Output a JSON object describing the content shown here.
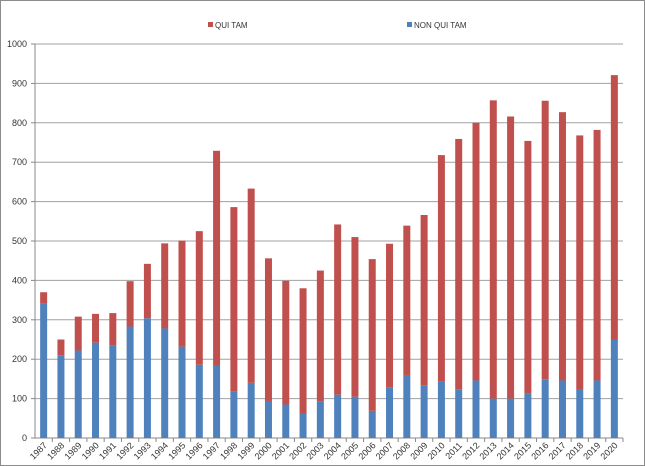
{
  "chart_data": {
    "type": "bar",
    "stacked": true,
    "title": "",
    "xlabel": "",
    "ylabel": "",
    "ylim": [
      0,
      1000
    ],
    "yticks": [
      0,
      100,
      200,
      300,
      400,
      500,
      600,
      700,
      800,
      900,
      1000
    ],
    "grid": true,
    "legend_position": "top",
    "categories": [
      "1987",
      "1988",
      "1989",
      "1990",
      "1991",
      "1992",
      "1993",
      "1994",
      "1995",
      "1996",
      "1997",
      "1998",
      "1999",
      "2000",
      "2001",
      "2002",
      "2003",
      "2004",
      "2005",
      "2006",
      "2007",
      "2008",
      "2009",
      "2010",
      "2011",
      "2012",
      "2013",
      "2014",
      "2015",
      "2016",
      "2017",
      "2018",
      "2019",
      "2020"
    ],
    "series": [
      {
        "name": "NON QUI TAM",
        "color": "#4f81bd",
        "values": [
          341,
          210,
          222,
          242,
          234,
          283,
          304,
          278,
          232,
          186,
          184,
          119,
          140,
          94,
          85,
          61,
          92,
          110,
          105,
          69,
          129,
          160,
          134,
          143,
          124,
          146,
          100,
          100,
          114,
          149,
          146,
          123,
          146,
          250
        ]
      },
      {
        "name": "QUI TAM",
        "color": "#c0504d",
        "values": [
          29,
          40,
          86,
          73,
          83,
          115,
          138,
          216,
          269,
          339,
          545,
          467,
          493,
          362,
          314,
          319,
          333,
          432,
          405,
          385,
          364,
          379,
          432,
          575,
          635,
          654,
          757,
          716,
          640,
          707,
          681,
          645,
          636,
          671
        ]
      }
    ],
    "legend": [
      {
        "label": "QUI TAM",
        "color": "#c0504d"
      },
      {
        "label": "NON QUI TAM",
        "color": "#4f81bd"
      }
    ]
  }
}
